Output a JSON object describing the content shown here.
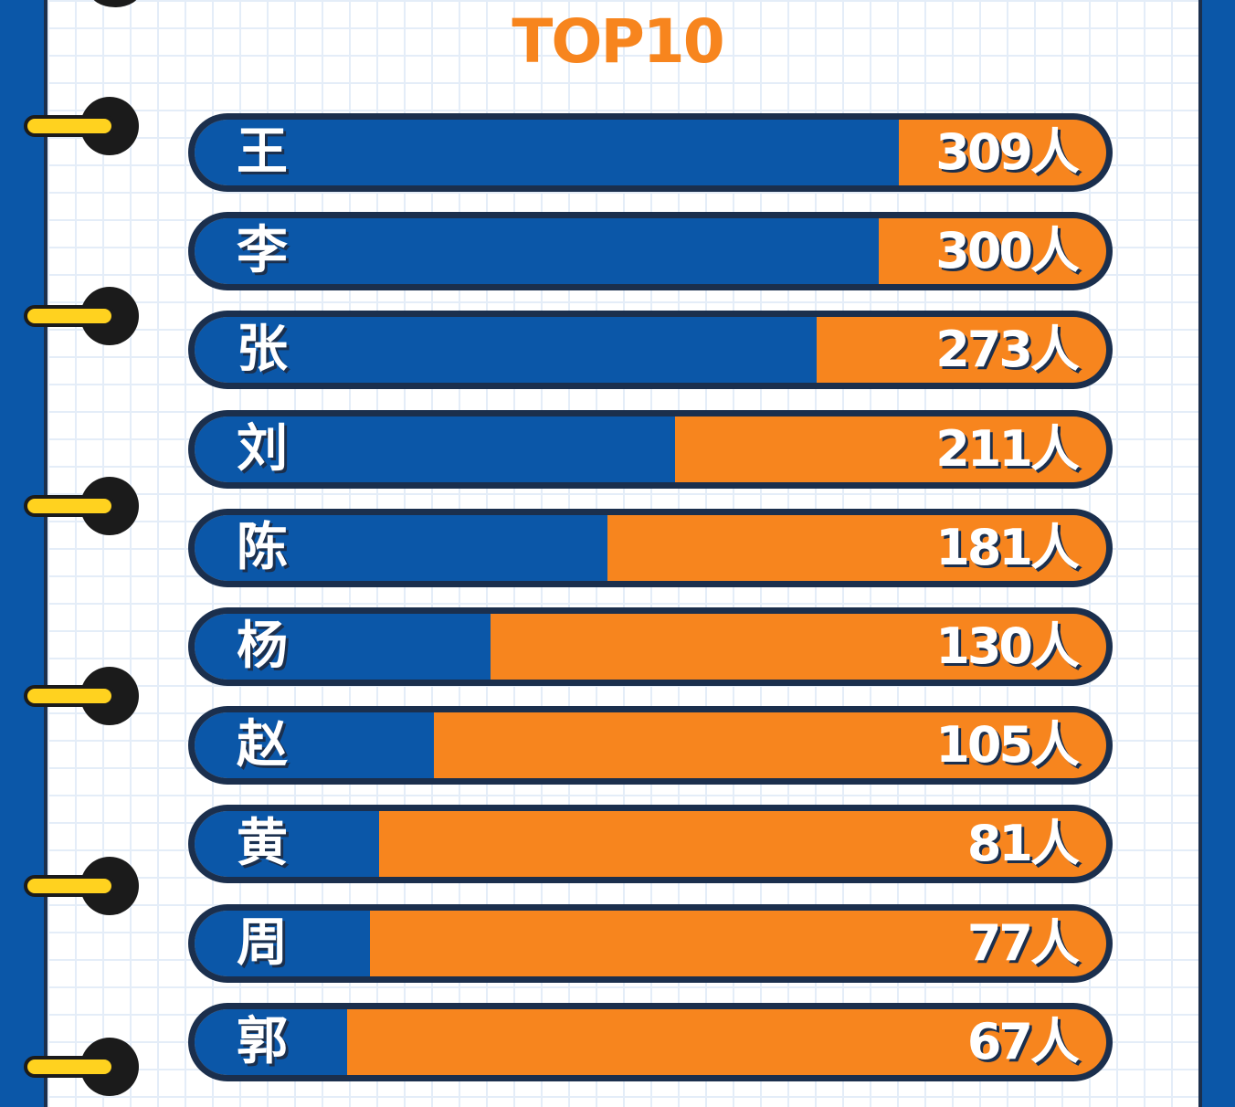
{
  "chart_data": {
    "type": "bar",
    "orientation": "horizontal",
    "title": "TOP10",
    "categories": [
      "王",
      "李",
      "张",
      "刘",
      "陈",
      "杨",
      "赵",
      "黄",
      "周",
      "郭"
    ],
    "values": [
      309,
      300,
      273,
      211,
      181,
      130,
      105,
      81,
      77,
      67
    ],
    "value_suffix": "人",
    "xlim": [
      0,
      400
    ],
    "colors": {
      "fill": "#0b57a8",
      "track": "#f7851e",
      "outline": "#1b2f4d",
      "title": "#f7851e",
      "label": "#ffffff"
    }
  }
}
